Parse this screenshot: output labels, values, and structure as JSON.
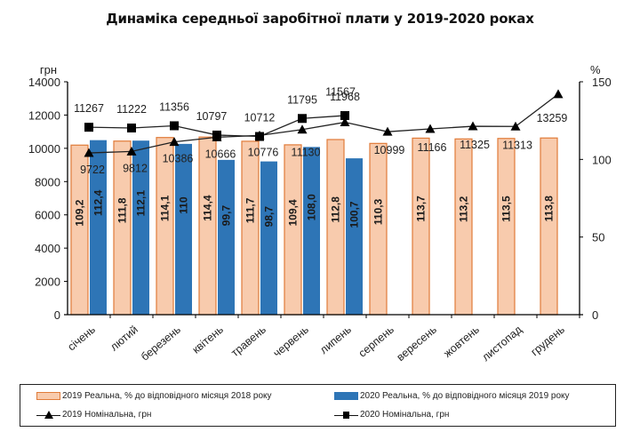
{
  "chart_data": {
    "type": "bar",
    "title": "Динаміка середньої заробітної плати у 2019-2020 роках",
    "categories": [
      "січень",
      "лютий",
      "березень",
      "квітень",
      "травень",
      "червень",
      "липень",
      "серпень",
      "вересень",
      "жовтень",
      "листопад",
      "грудень"
    ],
    "left_axis": {
      "label": "грн",
      "range": [
        0,
        14000
      ],
      "ticks": [
        "0",
        "2000",
        "4000",
        "6000",
        "8000",
        "10000",
        "12000",
        "14000"
      ],
      "tick_values": [
        0,
        2000,
        4000,
        6000,
        8000,
        10000,
        12000,
        14000
      ]
    },
    "right_axis": {
      "label": "%",
      "range": [
        0,
        150
      ],
      "ticks": [
        "0",
        "50",
        "100",
        "150"
      ],
      "tick_values": [
        0,
        50,
        100,
        150
      ]
    },
    "series": [
      {
        "name": "2019 Реальна, % до відповідного місяця 2018 року",
        "kind": "bar",
        "axis": "right",
        "color": "#F8CBAD",
        "edge": "#E07B39",
        "values": [
          109.2,
          111.8,
          114.1,
          114.4,
          111.7,
          109.4,
          112.8,
          110.3,
          113.7,
          113.2,
          113.5,
          113.8
        ],
        "labels": [
          "109,2",
          "111,8",
          "114,1",
          "114,4",
          "111,7",
          "109,4",
          "112,8",
          "110,3",
          "113,7",
          "113,2",
          "113,5",
          "113,8"
        ]
      },
      {
        "name": "2020 Реальна, % до відповідного місяця 2019 року",
        "kind": "bar",
        "axis": "right",
        "color": "#2E75B6",
        "values": [
          112.4,
          112.1,
          110,
          99.7,
          98.7,
          108.0,
          100.7,
          null,
          null,
          null,
          null,
          null
        ],
        "labels": [
          "112,4",
          "112,1",
          "110",
          "99,7",
          "98,7",
          "108,0",
          "100,7",
          null,
          null,
          null,
          null,
          null
        ]
      },
      {
        "name": "2019 Номінальна, грн",
        "kind": "line",
        "marker": "triangle",
        "axis": "left",
        "color": "#000000",
        "values": [
          9722,
          9812,
          10386,
          10666,
          10776,
          11130,
          11567,
          10999,
          11166,
          11325,
          11313,
          13259
        ],
        "labels": [
          "9722",
          "9812",
          "10386",
          "10666",
          "10776",
          "11130",
          "11567",
          "10999",
          "11166",
          "11325",
          "11313",
          "13259"
        ]
      },
      {
        "name": "2020 Номінальна, грн",
        "kind": "line",
        "marker": "square",
        "axis": "left",
        "color": "#000000",
        "values": [
          11267,
          11222,
          11356,
          10797,
          10712,
          11795,
          11968,
          null,
          null,
          null,
          null,
          null
        ],
        "labels": [
          "11267",
          "11222",
          "11356",
          "10797",
          "10712",
          "11795",
          "11968",
          null,
          null,
          null,
          null,
          null
        ]
      }
    ],
    "legend": {
      "position": "bottom",
      "items": [
        {
          "label": "2019 Реальна, % до відповідного місяця 2018 року",
          "swatch": "bar-2019"
        },
        {
          "label": "2020 Реальна, % до відповідного місяця 2019 року",
          "swatch": "bar-2020"
        },
        {
          "label": "2019 Номінальна, грн",
          "swatch": "line-triangle"
        },
        {
          "label": "2020 Номінальна, грн",
          "swatch": "line-square"
        }
      ]
    },
    "grid": false
  }
}
